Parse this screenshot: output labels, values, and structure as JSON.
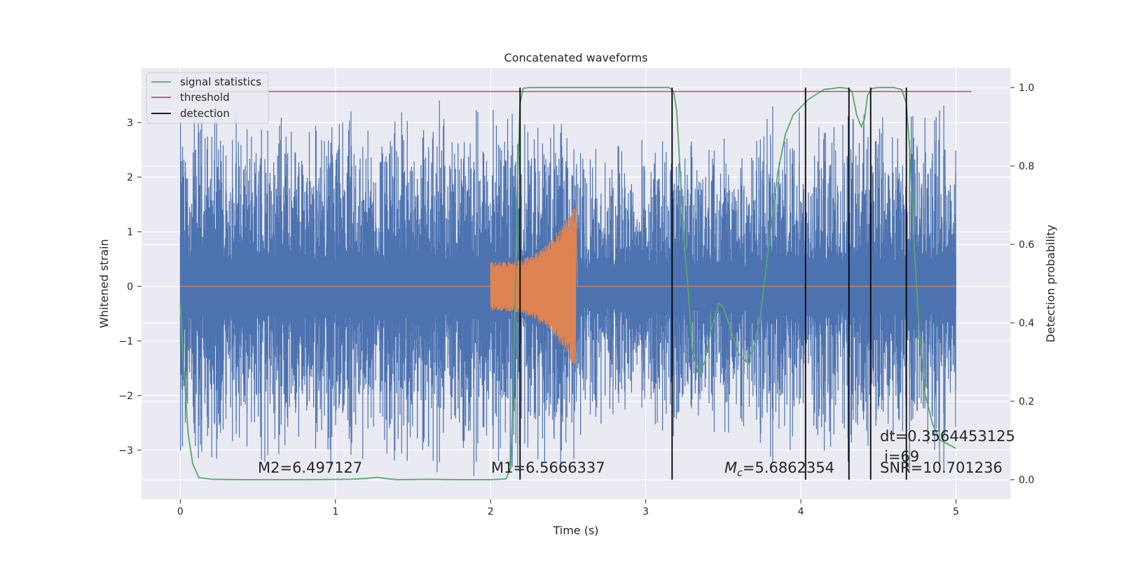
{
  "chart_data": {
    "type": "line",
    "title": "Concatenated waveforms",
    "xlabel": "Time (s)",
    "ylabel": "Whitened strain",
    "y2label": "Detection probability",
    "xlim": [
      -0.25,
      5.35
    ],
    "ylim": [
      -3.9,
      4.0
    ],
    "y2lim": [
      -0.05,
      1.05
    ],
    "x_ticks": [
      0,
      1,
      2,
      3,
      4,
      5
    ],
    "y_ticks": [
      -3,
      -2,
      -1,
      0,
      1,
      2,
      3
    ],
    "y2_ticks": [
      0.0,
      0.2,
      0.4,
      0.6,
      0.8,
      1.0
    ],
    "x_tick_labels": [
      "0",
      "1",
      "2",
      "3",
      "4",
      "5"
    ],
    "y_tick_labels": [
      "−3",
      "−2",
      "−1",
      "0",
      "1",
      "2",
      "3"
    ],
    "y2_tick_labels": [
      "0.0",
      "0.2",
      "0.4",
      "0.6",
      "0.8",
      "1.0"
    ],
    "grid": true,
    "legend_position": "top-left",
    "legend": [
      {
        "label": "signal statistics",
        "color": "#55a868"
      },
      {
        "label": "threshold",
        "color": "#c44e52"
      },
      {
        "label": "detection",
        "color": "#000000"
      }
    ],
    "colors": {
      "background": "#eaeaf2",
      "grid": "#ffffff",
      "noise": "#4c72b0",
      "injection": "#dd8452",
      "statistic": "#55a868",
      "threshold": "#c44e52",
      "detection": "#000000"
    },
    "series": [
      {
        "name": "signal statistics",
        "axis": "right",
        "x": [
          0.0,
          0.02,
          0.05,
          0.08,
          0.12,
          0.2,
          0.4,
          0.8,
          1.1,
          1.2,
          1.27,
          1.32,
          1.4,
          1.6,
          1.8,
          2.0,
          2.1,
          2.13,
          2.15,
          2.17,
          2.19,
          2.21,
          2.25,
          2.5,
          2.8,
          3.0,
          3.15,
          3.18,
          3.2,
          3.22,
          3.25,
          3.28,
          3.3,
          3.34,
          3.38,
          3.42,
          3.47,
          3.5,
          3.55,
          3.6,
          3.65,
          3.7,
          3.74,
          3.8,
          3.85,
          3.9,
          3.95,
          4.0,
          4.05,
          4.15,
          4.25,
          4.3,
          4.33,
          4.36,
          4.39,
          4.41,
          4.43,
          4.46,
          4.5,
          4.55,
          4.6,
          4.65,
          4.68,
          4.7,
          4.73,
          4.76,
          4.8,
          4.85,
          4.9,
          4.95,
          5.0
        ],
        "y": [
          0.45,
          0.3,
          0.12,
          0.04,
          0.005,
          0.001,
          0.0,
          0.0,
          0.001,
          0.003,
          0.006,
          0.003,
          0.0,
          0.001,
          0.0,
          0.0,
          0.002,
          0.03,
          0.3,
          0.7,
          0.96,
          0.998,
          1.0,
          1.0,
          1.0,
          1.0,
          1.0,
          0.99,
          0.94,
          0.8,
          0.6,
          0.45,
          0.33,
          0.27,
          0.3,
          0.38,
          0.45,
          0.44,
          0.38,
          0.32,
          0.3,
          0.34,
          0.42,
          0.62,
          0.78,
          0.88,
          0.93,
          0.95,
          0.97,
          0.995,
          1.0,
          0.998,
          0.99,
          0.93,
          0.9,
          0.92,
          0.98,
          0.998,
          1.0,
          1.0,
          1.0,
          0.995,
          0.96,
          0.85,
          0.6,
          0.4,
          0.22,
          0.14,
          0.1,
          0.09,
          0.08
        ]
      },
      {
        "name": "threshold",
        "axis": "right",
        "x": [
          0.0,
          5.1
        ],
        "y": [
          0.99,
          0.99
        ]
      }
    ],
    "detections_x": [
      2.19,
      3.17,
      4.03,
      4.31,
      4.45,
      4.68
    ],
    "noise": {
      "x_range": [
        0.0,
        5.0
      ],
      "envelope": 3.5
    },
    "injection": {
      "x_range": [
        2.0,
        2.55
      ],
      "peak_amplitude": 1.6
    },
    "annotations": [
      {
        "text": "M2=6.497127"
      },
      {
        "text": "M1=6.5666337"
      },
      {
        "text": "=5.6862354",
        "math_prefix": "M",
        "math_sub": "c"
      },
      {
        "text": "dt=0.3564453125"
      },
      {
        "text": "i=69"
      },
      {
        "text": "SNR=10.701236"
      }
    ]
  }
}
